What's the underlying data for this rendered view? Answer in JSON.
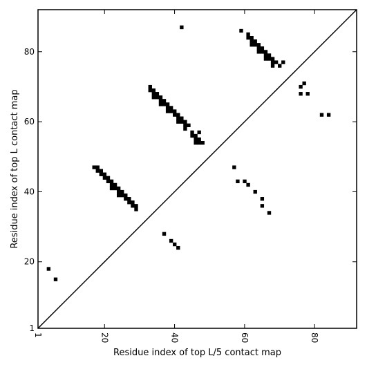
{
  "chart_data": {
    "type": "scatter",
    "title": "",
    "xlabel": "Residue index of top L/5 contact map",
    "ylabel": "Residue index of top L contact map",
    "xlim": [
      1,
      92
    ],
    "ylim": [
      1,
      92
    ],
    "xticks": [
      1,
      20,
      40,
      60,
      80
    ],
    "yticks": [
      1,
      20,
      40,
      60,
      80
    ],
    "grid": false,
    "marker": "square",
    "marker_color": "#000000",
    "diagonal": true,
    "points": [
      [
        42,
        87
      ],
      [
        59,
        86
      ],
      [
        61,
        85
      ],
      [
        61,
        84
      ],
      [
        62,
        84
      ],
      [
        62,
        83
      ],
      [
        63,
        83
      ],
      [
        62,
        82
      ],
      [
        63,
        82
      ],
      [
        64,
        82
      ],
      [
        64,
        81
      ],
      [
        65,
        81
      ],
      [
        64,
        80
      ],
      [
        65,
        80
      ],
      [
        66,
        80
      ],
      [
        66,
        79
      ],
      [
        67,
        79
      ],
      [
        66,
        78
      ],
      [
        67,
        78
      ],
      [
        68,
        78
      ],
      [
        68,
        77
      ],
      [
        69,
        77
      ],
      [
        71,
        77
      ],
      [
        68,
        76
      ],
      [
        70,
        76
      ],
      [
        77,
        71
      ],
      [
        76,
        70
      ],
      [
        76,
        68
      ],
      [
        78,
        68
      ],
      [
        82,
        62
      ],
      [
        84,
        62
      ],
      [
        33,
        70
      ],
      [
        33,
        69
      ],
      [
        34,
        69
      ],
      [
        34,
        68
      ],
      [
        35,
        68
      ],
      [
        34,
        67
      ],
      [
        35,
        67
      ],
      [
        36,
        67
      ],
      [
        36,
        66
      ],
      [
        37,
        66
      ],
      [
        36,
        65
      ],
      [
        37,
        65
      ],
      [
        38,
        65
      ],
      [
        38,
        64
      ],
      [
        39,
        64
      ],
      [
        38,
        63
      ],
      [
        39,
        63
      ],
      [
        40,
        63
      ],
      [
        40,
        62
      ],
      [
        41,
        62
      ],
      [
        41,
        61
      ],
      [
        42,
        61
      ],
      [
        41,
        60
      ],
      [
        42,
        60
      ],
      [
        43,
        60
      ],
      [
        43,
        59
      ],
      [
        44,
        59
      ],
      [
        43,
        58
      ],
      [
        45,
        57
      ],
      [
        47,
        57
      ],
      [
        45,
        56
      ],
      [
        46,
        56
      ],
      [
        46,
        55
      ],
      [
        47,
        55
      ],
      [
        46,
        54
      ],
      [
        47,
        54
      ],
      [
        48,
        54
      ],
      [
        17,
        47
      ],
      [
        18,
        47
      ],
      [
        18,
        46
      ],
      [
        19,
        46
      ],
      [
        19,
        45
      ],
      [
        20,
        45
      ],
      [
        20,
        44
      ],
      [
        21,
        44
      ],
      [
        21,
        43
      ],
      [
        22,
        43
      ],
      [
        22,
        42
      ],
      [
        23,
        42
      ],
      [
        22,
        41
      ],
      [
        23,
        41
      ],
      [
        24,
        41
      ],
      [
        24,
        40
      ],
      [
        25,
        40
      ],
      [
        24,
        39
      ],
      [
        25,
        39
      ],
      [
        26,
        39
      ],
      [
        26,
        38
      ],
      [
        27,
        38
      ],
      [
        27,
        37
      ],
      [
        28,
        37
      ],
      [
        28,
        36
      ],
      [
        29,
        36
      ],
      [
        29,
        35
      ],
      [
        57,
        47
      ],
      [
        58,
        43
      ],
      [
        60,
        43
      ],
      [
        61,
        42
      ],
      [
        63,
        40
      ],
      [
        65,
        38
      ],
      [
        65,
        36
      ],
      [
        67,
        34
      ],
      [
        37,
        28
      ],
      [
        39,
        26
      ],
      [
        40,
        25
      ],
      [
        41,
        24
      ],
      [
        4,
        18
      ],
      [
        6,
        15
      ]
    ]
  }
}
